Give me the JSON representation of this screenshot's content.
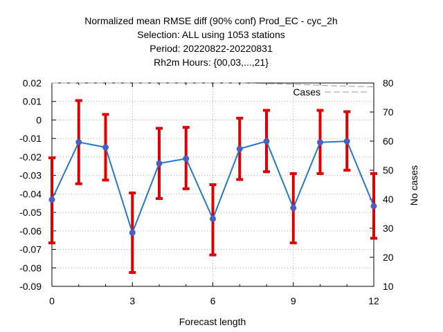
{
  "chart_data": {
    "type": "line",
    "title_lines": [
      "Normalized mean RMSE diff (90% conf) Prod_EC - cyc_2h",
      "Selection: ALL using  1053 stations",
      "Period: 20220822-20220831",
      "Rh2m   Hours: {00,03,...,21}"
    ],
    "xlabel": "Forecast length",
    "y2label": "No cases",
    "xlim": [
      0,
      12
    ],
    "ylim": [
      -0.09,
      0.02
    ],
    "y2lim": [
      10,
      80
    ],
    "xticks": [
      0,
      3,
      6,
      9,
      12
    ],
    "yticks": [
      0.02,
      0.01,
      0,
      -0.01,
      -0.02,
      -0.03,
      -0.04,
      -0.05,
      -0.06,
      -0.07,
      -0.08,
      -0.09
    ],
    "y2ticks": [
      80,
      70,
      60,
      50,
      40,
      30,
      20,
      10
    ],
    "grid": true,
    "legend_position": "top-right",
    "colors": {
      "diff": "#1f77d0",
      "marker": "#4a5fc1",
      "errorbar": "#e00000",
      "cases": "#999999"
    },
    "series": [
      {
        "x": [
          0,
          1,
          2,
          3,
          4,
          5,
          6,
          7,
          8,
          9,
          10,
          11,
          12
        ],
        "y": [
          -0.0431,
          -0.012,
          -0.0148,
          -0.061,
          -0.0235,
          -0.0209,
          -0.0535,
          -0.0156,
          -0.0115,
          -0.0476,
          -0.0121,
          -0.0115,
          -0.0466
        ],
        "err_low": [
          -0.0665,
          -0.0345,
          -0.0325,
          -0.0825,
          -0.0425,
          -0.0372,
          -0.073,
          -0.0322,
          -0.028,
          -0.0665,
          -0.029,
          -0.0272,
          -0.064
        ],
        "err_high": [
          -0.0205,
          0.0105,
          0.003,
          -0.0395,
          -0.0045,
          -0.004,
          -0.035,
          0.001,
          0.0052,
          -0.029,
          0.0052,
          0.0045,
          -0.029
        ]
      },
      {
        "name": "Cases",
        "axis": "right",
        "x": [
          0,
          1,
          2,
          3,
          4,
          5,
          6,
          7,
          8,
          9,
          10,
          11,
          12
        ],
        "y": [
          80,
          80,
          80,
          80,
          80,
          80,
          80,
          80,
          79.8,
          79.6,
          79.2,
          78.9,
          78.7
        ]
      }
    ]
  }
}
